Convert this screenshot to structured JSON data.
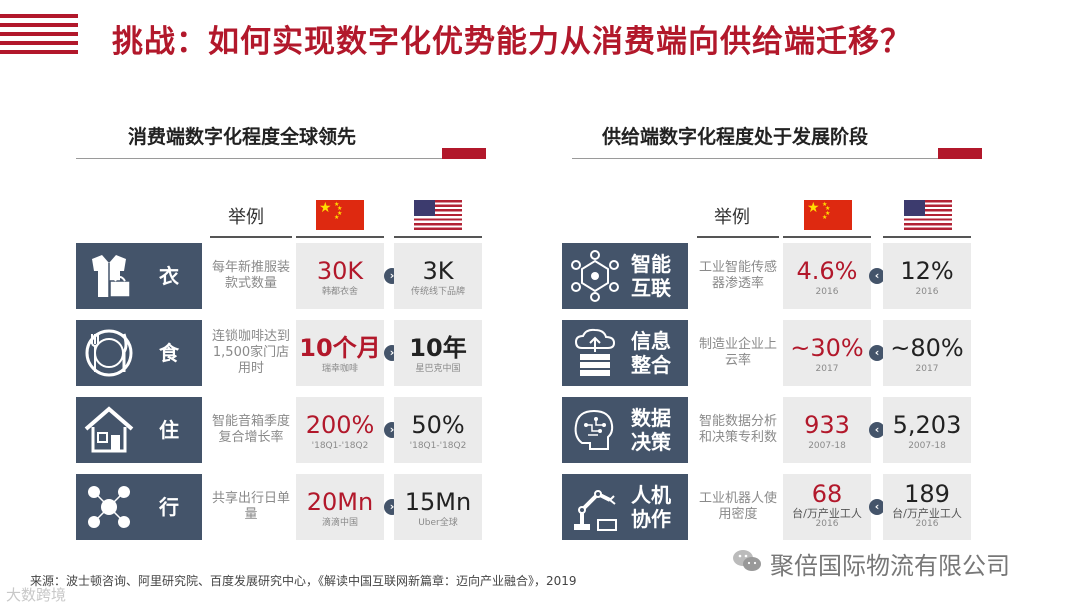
{
  "title": "挑战：如何实现数字化优势能力从消费端向供给端迁移？",
  "left": {
    "heading": "消费端数字化程度全球领先",
    "col_example": "举例",
    "rows": [
      {
        "icon": "clothing-icon",
        "label": "衣",
        "desc": "每年新推服装款式数量",
        "cn_value": "30K",
        "cn_note": "韩都衣舍",
        "us_value": "3K",
        "us_note": "传统线下品牌"
      },
      {
        "icon": "dining-icon",
        "label": "食",
        "desc": "连锁咖啡达到1,500家门店用时",
        "cn_value": "10个月",
        "cn_note": "瑞幸咖啡",
        "us_value": "10年",
        "us_note": "星巴克中国"
      },
      {
        "icon": "house-icon",
        "label": "住",
        "desc": "智能音箱季度复合增长率",
        "cn_value": "200%",
        "cn_note": "'18Q1-'18Q2",
        "us_value": "50%",
        "us_note": "'18Q1-'18Q2"
      },
      {
        "icon": "mobility-icon",
        "label": "行",
        "desc": "共享出行日单量",
        "cn_value": "20Mn",
        "cn_note": "滴滴中国",
        "us_value": "15Mn",
        "us_note": "Uber全球"
      }
    ]
  },
  "right": {
    "heading": "供给端数字化程度处于发展阶段",
    "col_example": "举例",
    "rows": [
      {
        "icon": "network-icon",
        "label": "智能互联",
        "desc": "工业智能传感器渗透率",
        "cn_value": "4.6%",
        "cn_note": "2016",
        "us_value": "12%",
        "us_note": "2016"
      },
      {
        "icon": "cloud-server-icon",
        "label": "信息整合",
        "desc": "制造业企业上云率",
        "cn_value": "~30%",
        "cn_note": "2017",
        "us_value": "~80%",
        "us_note": "2017"
      },
      {
        "icon": "brain-icon",
        "label": "数据决策",
        "desc": "智能数据分析和决策专利数",
        "cn_value": "933",
        "cn_note": "2007-18",
        "us_value": "5,203",
        "us_note": "2007-18"
      },
      {
        "icon": "robot-arm-icon",
        "label": "人机协作",
        "desc": "工业机器人使用密度",
        "cn_value": "68",
        "cn_note_top": "台/万产业工人",
        "cn_note": "2016",
        "us_value": "189",
        "us_note_top": "台/万产业工人",
        "us_note": "2016"
      }
    ]
  },
  "footer": "来源：波士顿咨询、阿里研究院、百度发展研究中心，《解读中国互联网新篇章：迈向产业融合》，2019",
  "watermark": "聚倍国际物流有限公司",
  "watermark2": "大数跨境",
  "colors": {
    "accent": "#b2182b",
    "tile": "#44546a",
    "cell": "#ebebeb"
  }
}
